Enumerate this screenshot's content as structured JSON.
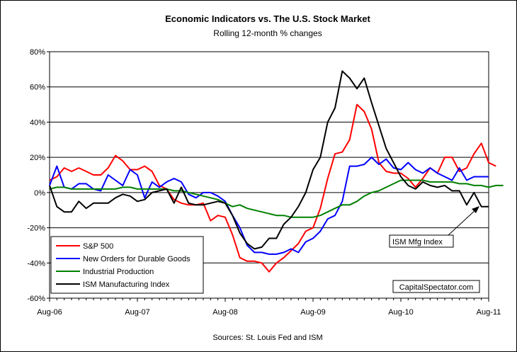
{
  "chart_data": {
    "type": "line",
    "title": "Economic Indicators vs. The U.S. Stock Market",
    "subtitle": "Rolling 12-month % changes",
    "source": "Sources: St. Louis Fed and ISM",
    "watermark": "CapitalSpectator.com",
    "annotation": {
      "text": "ISM Mfg Index",
      "points_to_series": "ISM Manufacturing Index"
    },
    "x_tick_labels": [
      "Aug-06",
      "Aug-07",
      "Aug-08",
      "Aug-09",
      "Aug-10",
      "Aug-11"
    ],
    "y_tick_labels": [
      "80%",
      "60%",
      "40%",
      "20%",
      "0%",
      "-20%",
      "-40%",
      "-60%"
    ],
    "y_tick_values": [
      80,
      60,
      40,
      20,
      0,
      -20,
      -40,
      -60
    ],
    "ylim": [
      -60,
      80
    ],
    "x_start": "Aug-06",
    "x_period": "monthly",
    "grid": "horizontal",
    "legend_position": "bottom-left",
    "series": [
      {
        "name": "S&P 500",
        "color": "#ff0000",
        "values": [
          7,
          9,
          14,
          12,
          14,
          12,
          10,
          10,
          14,
          21,
          18,
          13,
          13,
          15,
          12,
          4,
          2,
          -4,
          -6,
          -7,
          -7,
          -6,
          -16,
          -13,
          -14,
          -24,
          -37,
          -39,
          -39,
          -40,
          -45,
          -40,
          -37,
          -33,
          -29,
          -22,
          -20,
          -9,
          8,
          22,
          23,
          30,
          50,
          46,
          36,
          17,
          12,
          11,
          11,
          8,
          3,
          8,
          14,
          11,
          20,
          20,
          12,
          14,
          22,
          28,
          17,
          15
        ]
      },
      {
        "name": "New Orders for Durable Goods",
        "color": "#0000ff",
        "values": [
          4,
          15,
          3,
          2,
          5,
          5,
          2,
          1,
          10,
          7,
          4,
          13,
          10,
          -3,
          6,
          3,
          6,
          8,
          6,
          -1,
          -3,
          0,
          0,
          -2,
          -5,
          -13,
          -20,
          -30,
          -34,
          -34,
          -35,
          -35,
          -34,
          -32,
          -34,
          -28,
          -26,
          -22,
          -15,
          -13,
          -5,
          15,
          15,
          16,
          20,
          16,
          19,
          14,
          13,
          17,
          13,
          11,
          14,
          11,
          9,
          7,
          14,
          7,
          9,
          9,
          9
        ]
      },
      {
        "name": "Industrial Production",
        "color": "#008000",
        "values": [
          2,
          3,
          3,
          2,
          2,
          2,
          2,
          2,
          2,
          2,
          3,
          3,
          2,
          2,
          2,
          2,
          2,
          1,
          1,
          0,
          -1,
          -2,
          -3,
          -4,
          -6,
          -8,
          -7,
          -9,
          -10,
          -11,
          -12,
          -13,
          -13,
          -14,
          -14,
          -14,
          -14,
          -13,
          -11,
          -9,
          -7,
          -7,
          -5,
          -2,
          0,
          1,
          3,
          5,
          7,
          7,
          7,
          7,
          6,
          6,
          6,
          6,
          5,
          5,
          4,
          4,
          3,
          4,
          4
        ]
      },
      {
        "name": "ISM Manufacturing Index",
        "color": "#000000",
        "values": [
          4,
          -8,
          -11,
          -11,
          -5,
          -9,
          -6,
          -6,
          -6,
          -3,
          -1,
          -2,
          -5,
          -4,
          0,
          1,
          2,
          -6,
          3,
          -6,
          -7,
          -7,
          -6,
          -5,
          -6,
          -13,
          -23,
          -29,
          -32,
          -31,
          -26,
          -26,
          -18,
          -14,
          -8,
          0,
          13,
          20,
          40,
          48,
          69,
          65,
          59,
          65,
          51,
          38,
          25,
          17,
          9,
          4,
          2,
          6,
          4,
          3,
          4,
          1,
          1,
          -7,
          0,
          -8,
          -8
        ]
      }
    ]
  }
}
